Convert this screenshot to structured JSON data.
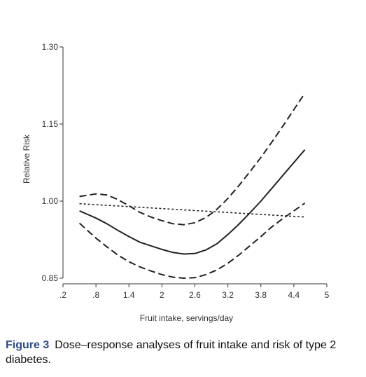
{
  "chart_data": {
    "type": "line",
    "title": "",
    "xlabel": "Fruit intake, servings/day",
    "ylabel": "Relative Risk",
    "xlim": [
      0.2,
      5
    ],
    "ylim": [
      0.85,
      1.3
    ],
    "x_ticks": [
      ".2",
      ".8",
      "1.4",
      "2",
      "2.6",
      "3.2",
      "3.8",
      "4.4",
      "5"
    ],
    "x_tick_values": [
      0.2,
      0.8,
      1.4,
      2.0,
      2.6,
      3.2,
      3.8,
      4.4,
      5.0
    ],
    "y_ticks": [
      "0.85",
      "1.00",
      "1.15",
      "1.30"
    ],
    "y_tick_values": [
      0.85,
      1.0,
      1.15,
      1.3
    ],
    "grid": false,
    "legend": "none",
    "series": [
      {
        "style": "solid",
        "x": [
          0.5,
          0.8,
          1.0,
          1.2,
          1.4,
          1.6,
          1.8,
          2.0,
          2.2,
          2.4,
          2.6,
          2.8,
          3.0,
          3.2,
          3.4,
          3.6,
          3.8,
          4.0,
          4.2,
          4.4,
          4.6
        ],
        "y": [
          0.981,
          0.967,
          0.956,
          0.943,
          0.931,
          0.92,
          0.913,
          0.906,
          0.9,
          0.897,
          0.898,
          0.905,
          0.917,
          0.935,
          0.955,
          0.977,
          1.0,
          1.025,
          1.05,
          1.075,
          1.1
        ]
      },
      {
        "style": "long-dash",
        "x": [
          0.5,
          0.8,
          1.0,
          1.2,
          1.4,
          1.6,
          1.8,
          2.0,
          2.2,
          2.4,
          2.6,
          2.8,
          3.0,
          3.2,
          3.4,
          3.6,
          3.8,
          4.0,
          4.2,
          4.4,
          4.6
        ],
        "y": [
          1.009,
          1.014,
          1.012,
          1.003,
          0.991,
          0.978,
          0.969,
          0.962,
          0.956,
          0.954,
          0.958,
          0.968,
          0.984,
          1.005,
          1.03,
          1.057,
          1.085,
          1.115,
          1.146,
          1.178,
          1.21
        ]
      },
      {
        "style": "long-dash",
        "x": [
          0.5,
          0.8,
          1.0,
          1.2,
          1.4,
          1.6,
          1.8,
          2.0,
          2.2,
          2.4,
          2.6,
          2.8,
          3.0,
          3.2,
          3.4,
          3.6,
          3.8,
          4.0,
          4.2,
          4.4,
          4.6
        ],
        "y": [
          0.957,
          0.928,
          0.911,
          0.895,
          0.882,
          0.872,
          0.864,
          0.857,
          0.852,
          0.85,
          0.851,
          0.857,
          0.866,
          0.879,
          0.895,
          0.913,
          0.931,
          0.95,
          0.966,
          0.981,
          0.996
        ]
      },
      {
        "style": "short-dash",
        "x": [
          0.5,
          4.6
        ],
        "y": [
          0.995,
          0.969
        ]
      }
    ]
  },
  "caption": {
    "label": "Figure 3",
    "text": "Dose–response analyses of fruit intake and risk of type 2 diabetes."
  }
}
